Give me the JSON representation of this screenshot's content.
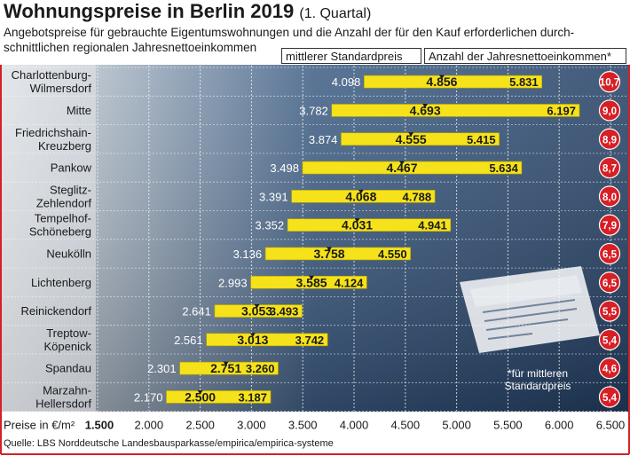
{
  "header": {
    "title": "Wohnungspreise in Berlin 2019",
    "title_suffix": "(1. Quartal)",
    "subtitle": "Angebotspreise für gebrauchte Eigentumswohnungen und die Anzahl der für den Kauf erforderlichen durch-schnittlichen regionalen Jahresnettoeinkommen",
    "legend_median": "mittlerer Standardpreis",
    "legend_income": "Anzahl der Jahresnettoeinkommen*"
  },
  "footnote": "*für mittleren Standardpreis",
  "source": "Quelle: LBS Norddeutsche Landesbausparkasse/empirica/empirica-systeme",
  "colors": {
    "bar": "#f5e21a",
    "panel": "#2c4f78",
    "badge": "#d71f26",
    "frame": "#d71f26"
  },
  "chart_data": {
    "type": "bar",
    "orientation": "horizontal-range",
    "xlabel": "Preise in €/m²",
    "xlim": [
      1500,
      6500
    ],
    "x_ticks": [
      1500,
      2000,
      2500,
      3000,
      3500,
      4000,
      4500,
      5000,
      5500,
      6000,
      6500
    ],
    "x_tick_labels": [
      "1.500",
      "2.000",
      "2.500",
      "3.000",
      "3.500",
      "4.000",
      "4.500",
      "5.000",
      "5.500",
      "6.000",
      "6.500"
    ],
    "grid": true,
    "districts": [
      {
        "name_lines": [
          "Charlottenburg-",
          "Wilmersdorf"
        ],
        "low": 4098,
        "median": 4856,
        "high": 5831,
        "low_label": "4.098",
        "median_label": "4.856",
        "high_label": "5.831",
        "income": "10,7"
      },
      {
        "name_lines": [
          "Mitte"
        ],
        "low": 3782,
        "median": 4693,
        "high": 6197,
        "low_label": "3.782",
        "median_label": "4.693",
        "high_label": "6.197",
        "income": "9,0"
      },
      {
        "name_lines": [
          "Friedrichshain-",
          "Kreuzberg"
        ],
        "low": 3874,
        "median": 4555,
        "high": 5415,
        "low_label": "3.874",
        "median_label": "4.555",
        "high_label": "5.415",
        "income": "8,9"
      },
      {
        "name_lines": [
          "Pankow"
        ],
        "low": 3498,
        "median": 4467,
        "high": 5634,
        "low_label": "3.498",
        "median_label": "4.467",
        "high_label": "5.634",
        "income": "8,7"
      },
      {
        "name_lines": [
          "Steglitz-",
          "Zehlendorf"
        ],
        "low": 3391,
        "median": 4068,
        "high": 4788,
        "low_label": "3.391",
        "median_label": "4.068",
        "high_label": "4.788",
        "income": "8,0"
      },
      {
        "name_lines": [
          "Tempelhof-",
          "Schöneberg"
        ],
        "low": 3352,
        "median": 4031,
        "high": 4941,
        "low_label": "3.352",
        "median_label": "4.031",
        "high_label": "4.941",
        "income": "7,9"
      },
      {
        "name_lines": [
          "Neukölln"
        ],
        "low": 3136,
        "median": 3758,
        "high": 4550,
        "low_label": "3.136",
        "median_label": "3.758",
        "high_label": "4.550",
        "income": "6,5"
      },
      {
        "name_lines": [
          "Lichtenberg"
        ],
        "low": 2993,
        "median": 3585,
        "high": 4124,
        "low_label": "2.993",
        "median_label": "3.585",
        "high_label": "4.124",
        "income": "6,5"
      },
      {
        "name_lines": [
          "Reinickendorf"
        ],
        "low": 2641,
        "median": 3053,
        "high": 3493,
        "low_label": "2.641",
        "median_label": "3.053",
        "high_label": "3.493",
        "income": "5,5"
      },
      {
        "name_lines": [
          "Treptow-",
          "Köpenick"
        ],
        "low": 2561,
        "median": 3013,
        "high": 3742,
        "low_label": "2.561",
        "median_label": "3.013",
        "high_label": "3.742",
        "income": "5,4"
      },
      {
        "name_lines": [
          "Spandau"
        ],
        "low": 2301,
        "median": 2751,
        "high": 3260,
        "low_label": "2.301",
        "median_label": "2.751",
        "high_label": "3.260",
        "income": "4,6"
      },
      {
        "name_lines": [
          "Marzahn-",
          "Hellersdorf"
        ],
        "low": 2170,
        "median": 2500,
        "high": 3187,
        "low_label": "2.170",
        "median_label": "2.500",
        "high_label": "3.187",
        "income": "5,4"
      }
    ]
  }
}
